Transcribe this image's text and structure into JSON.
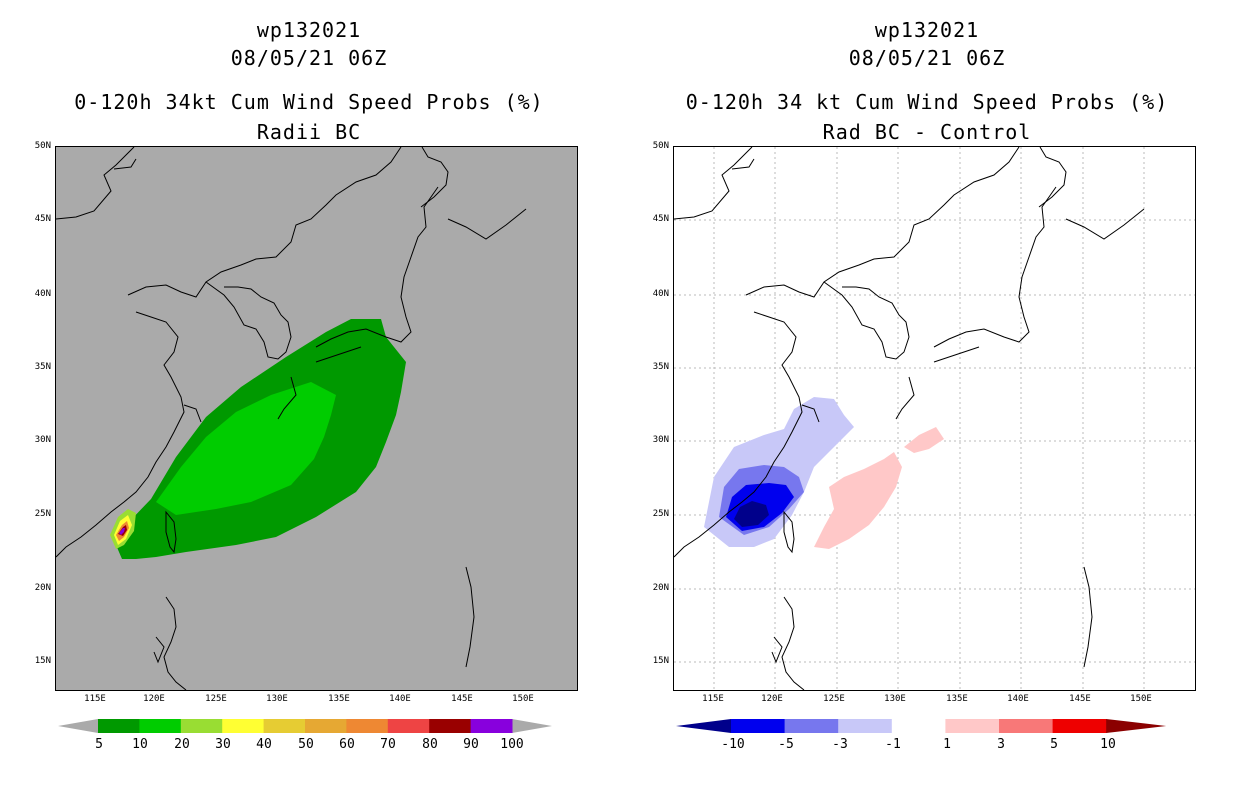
{
  "left": {
    "title1": "wp132021",
    "title2": "08/05/21 06Z",
    "title3": "0-120h 34kt Cum Wind Speed Probs (%)",
    "title4": "Radii BC",
    "colorbar": {
      "labels": [
        "5",
        "10",
        "20",
        "30",
        "40",
        "50",
        "60",
        "70",
        "80",
        "90",
        "100"
      ],
      "colors": [
        "#009900",
        "#00cc00",
        "#99dd33",
        "#ffff33",
        "#e6cc33",
        "#e6a833",
        "#ee8833",
        "#ee4444",
        "#990000",
        "#8800dd"
      ]
    }
  },
  "right": {
    "title1": "wp132021",
    "title2": "08/05/21 06Z",
    "title3": "0-120h 34 kt Cum Wind Speed Probs (%)",
    "title4": "Rad BC - Control",
    "colorbar": {
      "labels": [
        "-10",
        "-5",
        "-3",
        "-1",
        "1",
        "3",
        "5",
        "10"
      ],
      "colors": [
        "#00008b",
        "#0000ee",
        "#7777ee",
        "#c8c8f8",
        "#ffffff",
        "#ffc8c8",
        "#f87878",
        "#ee0000",
        "#8b0000"
      ]
    }
  },
  "axes": {
    "lat_labels": [
      "50N",
      "45N",
      "40N",
      "35N",
      "30N",
      "25N",
      "20N",
      "15N"
    ],
    "lon_labels": [
      "115E",
      "120E",
      "125E",
      "130E",
      "135E",
      "140E",
      "145E",
      "150E"
    ]
  },
  "colors": {
    "land_bg_left": "#aaaaaa",
    "bg_right": "#ffffff",
    "coast": "#000000"
  }
}
